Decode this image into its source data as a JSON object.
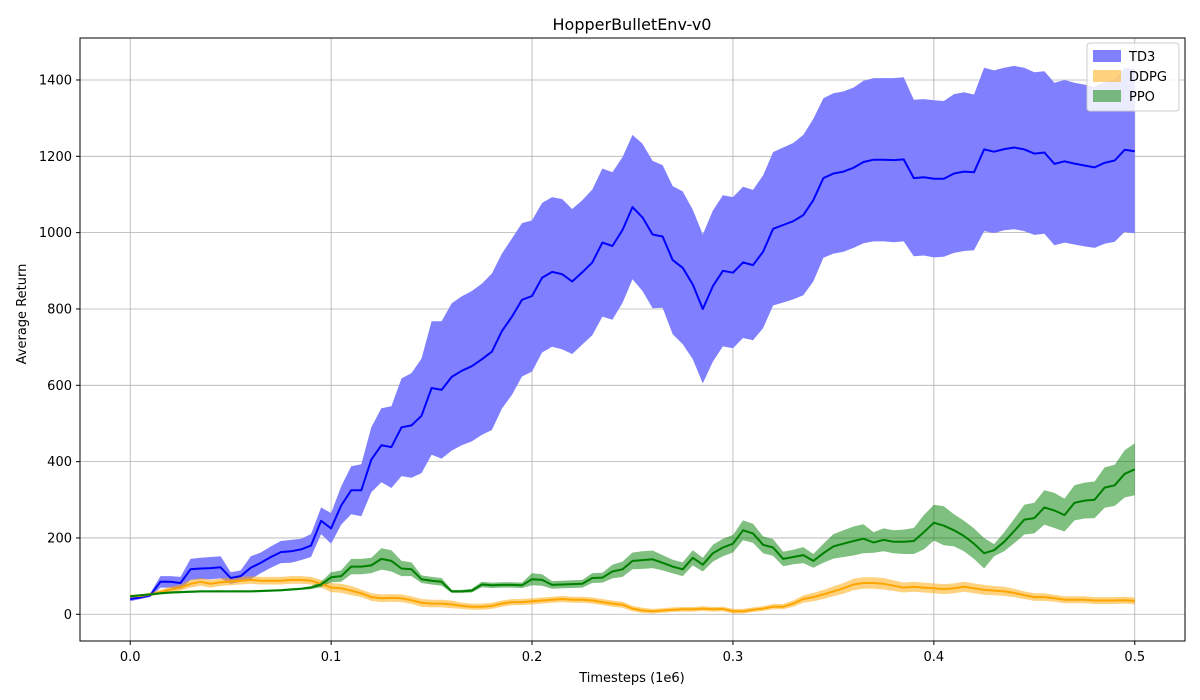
{
  "chart_data": {
    "type": "line",
    "title": "HopperBulletEnv-v0",
    "xlabel": "Timesteps (1e6)",
    "ylabel": "Average Return",
    "xlim": [
      -0.025,
      0.525
    ],
    "ylim": [
      -70,
      1510
    ],
    "xticks": [
      0.0,
      0.1,
      0.2,
      0.3,
      0.4,
      0.5
    ],
    "xtick_labels": [
      "0.0",
      "0.1",
      "0.2",
      "0.3",
      "0.4",
      "0.5"
    ],
    "yticks": [
      0,
      200,
      400,
      600,
      800,
      1000,
      1200,
      1400
    ],
    "ytick_labels": [
      "0",
      "200",
      "400",
      "600",
      "800",
      "1000",
      "1200",
      "1400"
    ],
    "grid": true,
    "legend_position": "top-right",
    "x": [
      0.0,
      0.005,
      0.01,
      0.015,
      0.02,
      0.025,
      0.03,
      0.035,
      0.04,
      0.045,
      0.05,
      0.055,
      0.06,
      0.065,
      0.07,
      0.075,
      0.08,
      0.085,
      0.09,
      0.095,
      0.1,
      0.105,
      0.11,
      0.115,
      0.12,
      0.125,
      0.13,
      0.135,
      0.14,
      0.145,
      0.15,
      0.155,
      0.16,
      0.165,
      0.17,
      0.175,
      0.18,
      0.185,
      0.19,
      0.195,
      0.2,
      0.205,
      0.21,
      0.215,
      0.22,
      0.225,
      0.23,
      0.235,
      0.24,
      0.245,
      0.25,
      0.255,
      0.26,
      0.265,
      0.27,
      0.275,
      0.28,
      0.285,
      0.29,
      0.295,
      0.3,
      0.305,
      0.31,
      0.315,
      0.32,
      0.325,
      0.33,
      0.335,
      0.34,
      0.345,
      0.35,
      0.355,
      0.36,
      0.365,
      0.37,
      0.375,
      0.38,
      0.385,
      0.39,
      0.395,
      0.4,
      0.405,
      0.41,
      0.415,
      0.42,
      0.425,
      0.43,
      0.435,
      0.44,
      0.445,
      0.45,
      0.455,
      0.46,
      0.465,
      0.47,
      0.475,
      0.48,
      0.485,
      0.49,
      0.495,
      0.5
    ],
    "series": [
      {
        "name": "TD3",
        "line_color": "#0000ff",
        "fill_color": "#8080ff",
        "fill_opacity": 1.0,
        "mean": [
          40,
          44,
          50,
          85,
          85,
          82,
          118,
          120,
          121,
          123,
          95,
          100,
          122,
          135,
          150,
          163,
          165,
          170,
          180,
          245,
          225,
          285,
          325,
          325,
          405,
          443,
          438,
          490,
          495,
          520,
          593,
          588,
          622,
          638,
          650,
          668,
          688,
          742,
          780,
          824,
          834,
          882,
          897,
          891,
          872,
          896,
          922,
          974,
          965,
          1007,
          1067,
          1040,
          995,
          990,
          928,
          908,
          864,
          800,
          860,
          900,
          895,
          922,
          915,
          950,
          1010,
          1020,
          1030,
          1046,
          1085,
          1143,
          1155,
          1160,
          1170,
          1185,
          1191,
          1191,
          1190,
          1192,
          1143,
          1145,
          1141,
          1141,
          1155,
          1160,
          1158,
          1218,
          1212,
          1219,
          1223,
          1218,
          1207,
          1210,
          1180,
          1187,
          1181,
          1176,
          1171,
          1183,
          1189,
          1217,
          1213
        ],
        "upper": [
          46,
          48,
          55,
          100,
          100,
          98,
          145,
          148,
          150,
          152,
          110,
          115,
          152,
          162,
          178,
          192,
          195,
          198,
          210,
          280,
          265,
          335,
          388,
          393,
          490,
          540,
          545,
          618,
          632,
          670,
          768,
          768,
          815,
          833,
          847,
          866,
          893,
          945,
          985,
          1025,
          1032,
          1078,
          1093,
          1088,
          1062,
          1085,
          1113,
          1168,
          1158,
          1198,
          1256,
          1233,
          1188,
          1177,
          1122,
          1108,
          1060,
          995,
          1058,
          1098,
          1093,
          1120,
          1112,
          1150,
          1211,
          1223,
          1235,
          1256,
          1298,
          1352,
          1365,
          1370,
          1380,
          1398,
          1405,
          1405,
          1405,
          1407,
          1348,
          1350,
          1347,
          1345,
          1363,
          1368,
          1362,
          1432,
          1425,
          1432,
          1437,
          1432,
          1420,
          1423,
          1393,
          1400,
          1393,
          1388,
          1382,
          1395,
          1402,
          1432,
          1428
        ],
        "lower": [
          34,
          40,
          45,
          70,
          70,
          66,
          90,
          92,
          92,
          94,
          80,
          85,
          92,
          108,
          122,
          134,
          135,
          142,
          150,
          210,
          185,
          235,
          262,
          257,
          320,
          346,
          331,
          362,
          358,
          370,
          418,
          408,
          429,
          443,
          453,
          470,
          483,
          539,
          575,
          623,
          636,
          686,
          701,
          694,
          682,
          707,
          731,
          780,
          772,
          816,
          878,
          847,
          802,
          803,
          734,
          708,
          668,
          605,
          662,
          702,
          697,
          724,
          718,
          750,
          809,
          817,
          825,
          836,
          872,
          934,
          945,
          950,
          960,
          972,
          977,
          977,
          975,
          977,
          938,
          940,
          935,
          937,
          947,
          952,
          954,
          1004,
          999,
          1006,
          1009,
          1004,
          994,
          997,
          967,
          974,
          969,
          964,
          960,
          971,
          976,
          1002,
          998
        ]
      },
      {
        "name": "DDPG",
        "line_color": "#ffa500",
        "fill_color": "#ffa500",
        "fill_opacity": 0.5,
        "mean": [
          47,
          48,
          52,
          58,
          65,
          70,
          80,
          85,
          80,
          84,
          86,
          88,
          90,
          88,
          88,
          88,
          90,
          90,
          88,
          80,
          70,
          68,
          62,
          55,
          45,
          42,
          43,
          42,
          37,
          30,
          28,
          28,
          26,
          22,
          20,
          20,
          22,
          28,
          32,
          32,
          34,
          36,
          38,
          40,
          38,
          38,
          36,
          32,
          28,
          25,
          15,
          10,
          8,
          10,
          12,
          13,
          13,
          15,
          13,
          14,
          8,
          8,
          12,
          15,
          20,
          20,
          28,
          40,
          45,
          52,
          60,
          68,
          78,
          82,
          82,
          80,
          75,
          70,
          72,
          70,
          68,
          66,
          68,
          72,
          68,
          64,
          62,
          60,
          56,
          50,
          45,
          45,
          42,
          38,
          38,
          38,
          36,
          36,
          36,
          37,
          35
        ],
        "upper": [
          51,
          52,
          57,
          64,
          72,
          78,
          90,
          95,
          90,
          94,
          96,
          98,
          100,
          98,
          98,
          98,
          100,
          100,
          98,
          90,
          82,
          80,
          74,
          65,
          55,
          52,
          53,
          52,
          47,
          40,
          38,
          38,
          36,
          30,
          28,
          28,
          30,
          36,
          40,
          40,
          42,
          44,
          46,
          48,
          46,
          46,
          44,
          40,
          36,
          33,
          22,
          17,
          14,
          16,
          18,
          19,
          19,
          21,
          19,
          20,
          14,
          14,
          18,
          21,
          27,
          27,
          36,
          50,
          56,
          64,
          73,
          82,
          93,
          97,
          97,
          95,
          89,
          83,
          85,
          83,
          81,
          79,
          81,
          85,
          81,
          77,
          74,
          72,
          67,
          60,
          55,
          55,
          51,
          47,
          47,
          47,
          45,
          45,
          45,
          46,
          44
        ],
        "lower": [
          43,
          44,
          47,
          52,
          58,
          62,
          70,
          75,
          70,
          74,
          76,
          78,
          80,
          78,
          78,
          78,
          80,
          80,
          78,
          70,
          58,
          56,
          50,
          45,
          35,
          32,
          33,
          32,
          27,
          20,
          18,
          18,
          16,
          14,
          12,
          12,
          14,
          20,
          24,
          24,
          26,
          28,
          30,
          32,
          30,
          30,
          28,
          24,
          20,
          17,
          8,
          3,
          2,
          4,
          6,
          7,
          7,
          9,
          7,
          8,
          2,
          2,
          6,
          9,
          13,
          13,
          20,
          30,
          34,
          40,
          47,
          54,
          63,
          67,
          67,
          65,
          61,
          57,
          59,
          57,
          55,
          53,
          55,
          59,
          55,
          51,
          50,
          48,
          45,
          40,
          35,
          35,
          33,
          29,
          29,
          29,
          27,
          27,
          27,
          28,
          26
        ]
      },
      {
        "name": "PPO",
        "line_color": "#008000",
        "fill_color": "#008000",
        "fill_opacity": 0.5,
        "mean": [
          47,
          50,
          52,
          55,
          57,
          58,
          59,
          60,
          60,
          60,
          60,
          60,
          60,
          61,
          62,
          63,
          65,
          67,
          70,
          78,
          97,
          100,
          125,
          125,
          128,
          145,
          140,
          120,
          118,
          92,
          88,
          85,
          60,
          60,
          62,
          78,
          76,
          77,
          77,
          76,
          92,
          90,
          77,
          78,
          79,
          80,
          95,
          96,
          112,
          118,
          140,
          142,
          144,
          135,
          125,
          118,
          148,
          130,
          160,
          175,
          185,
          220,
          212,
          182,
          175,
          145,
          150,
          155,
          140,
          160,
          178,
          185,
          192,
          198,
          188,
          195,
          190,
          190,
          192,
          215,
          240,
          232,
          220,
          205,
          185,
          160,
          168,
          190,
          218,
          248,
          252,
          280,
          272,
          260,
          292,
          298,
          300,
          332,
          338,
          368,
          380
        ],
        "upper": [
          49,
          52,
          55,
          58,
          60,
          61,
          62,
          63,
          63,
          63,
          63,
          63,
          63,
          64,
          65,
          66,
          68,
          70,
          74,
          85,
          110,
          115,
          145,
          145,
          148,
          173,
          168,
          140,
          136,
          102,
          98,
          95,
          64,
          64,
          67,
          85,
          83,
          84,
          84,
          83,
          108,
          105,
          87,
          88,
          89,
          90,
          108,
          109,
          130,
          138,
          162,
          165,
          167,
          155,
          143,
          136,
          168,
          148,
          182,
          198,
          208,
          246,
          237,
          204,
          197,
          164,
          169,
          176,
          158,
          185,
          210,
          220,
          230,
          236,
          215,
          225,
          220,
          222,
          226,
          260,
          287,
          283,
          262,
          245,
          225,
          200,
          184,
          215,
          250,
          287,
          292,
          325,
          318,
          303,
          338,
          345,
          348,
          385,
          392,
          430,
          448
        ],
        "lower": [
          45,
          48,
          49,
          52,
          54,
          55,
          56,
          57,
          57,
          57,
          57,
          57,
          57,
          58,
          59,
          60,
          62,
          64,
          66,
          71,
          84,
          85,
          105,
          105,
          108,
          117,
          112,
          100,
          100,
          82,
          78,
          75,
          56,
          56,
          57,
          71,
          69,
          70,
          70,
          69,
          76,
          75,
          67,
          68,
          69,
          70,
          82,
          83,
          94,
          98,
          118,
          119,
          121,
          115,
          107,
          100,
          128,
          112,
          138,
          152,
          162,
          194,
          187,
          160,
          153,
          126,
          131,
          134,
          122,
          135,
          146,
          150,
          154,
          160,
          161,
          165,
          160,
          158,
          158,
          170,
          193,
          181,
          178,
          165,
          145,
          120,
          152,
          165,
          186,
          209,
          212,
          235,
          226,
          217,
          246,
          251,
          252,
          279,
          284,
          306,
          312
        ]
      }
    ]
  }
}
